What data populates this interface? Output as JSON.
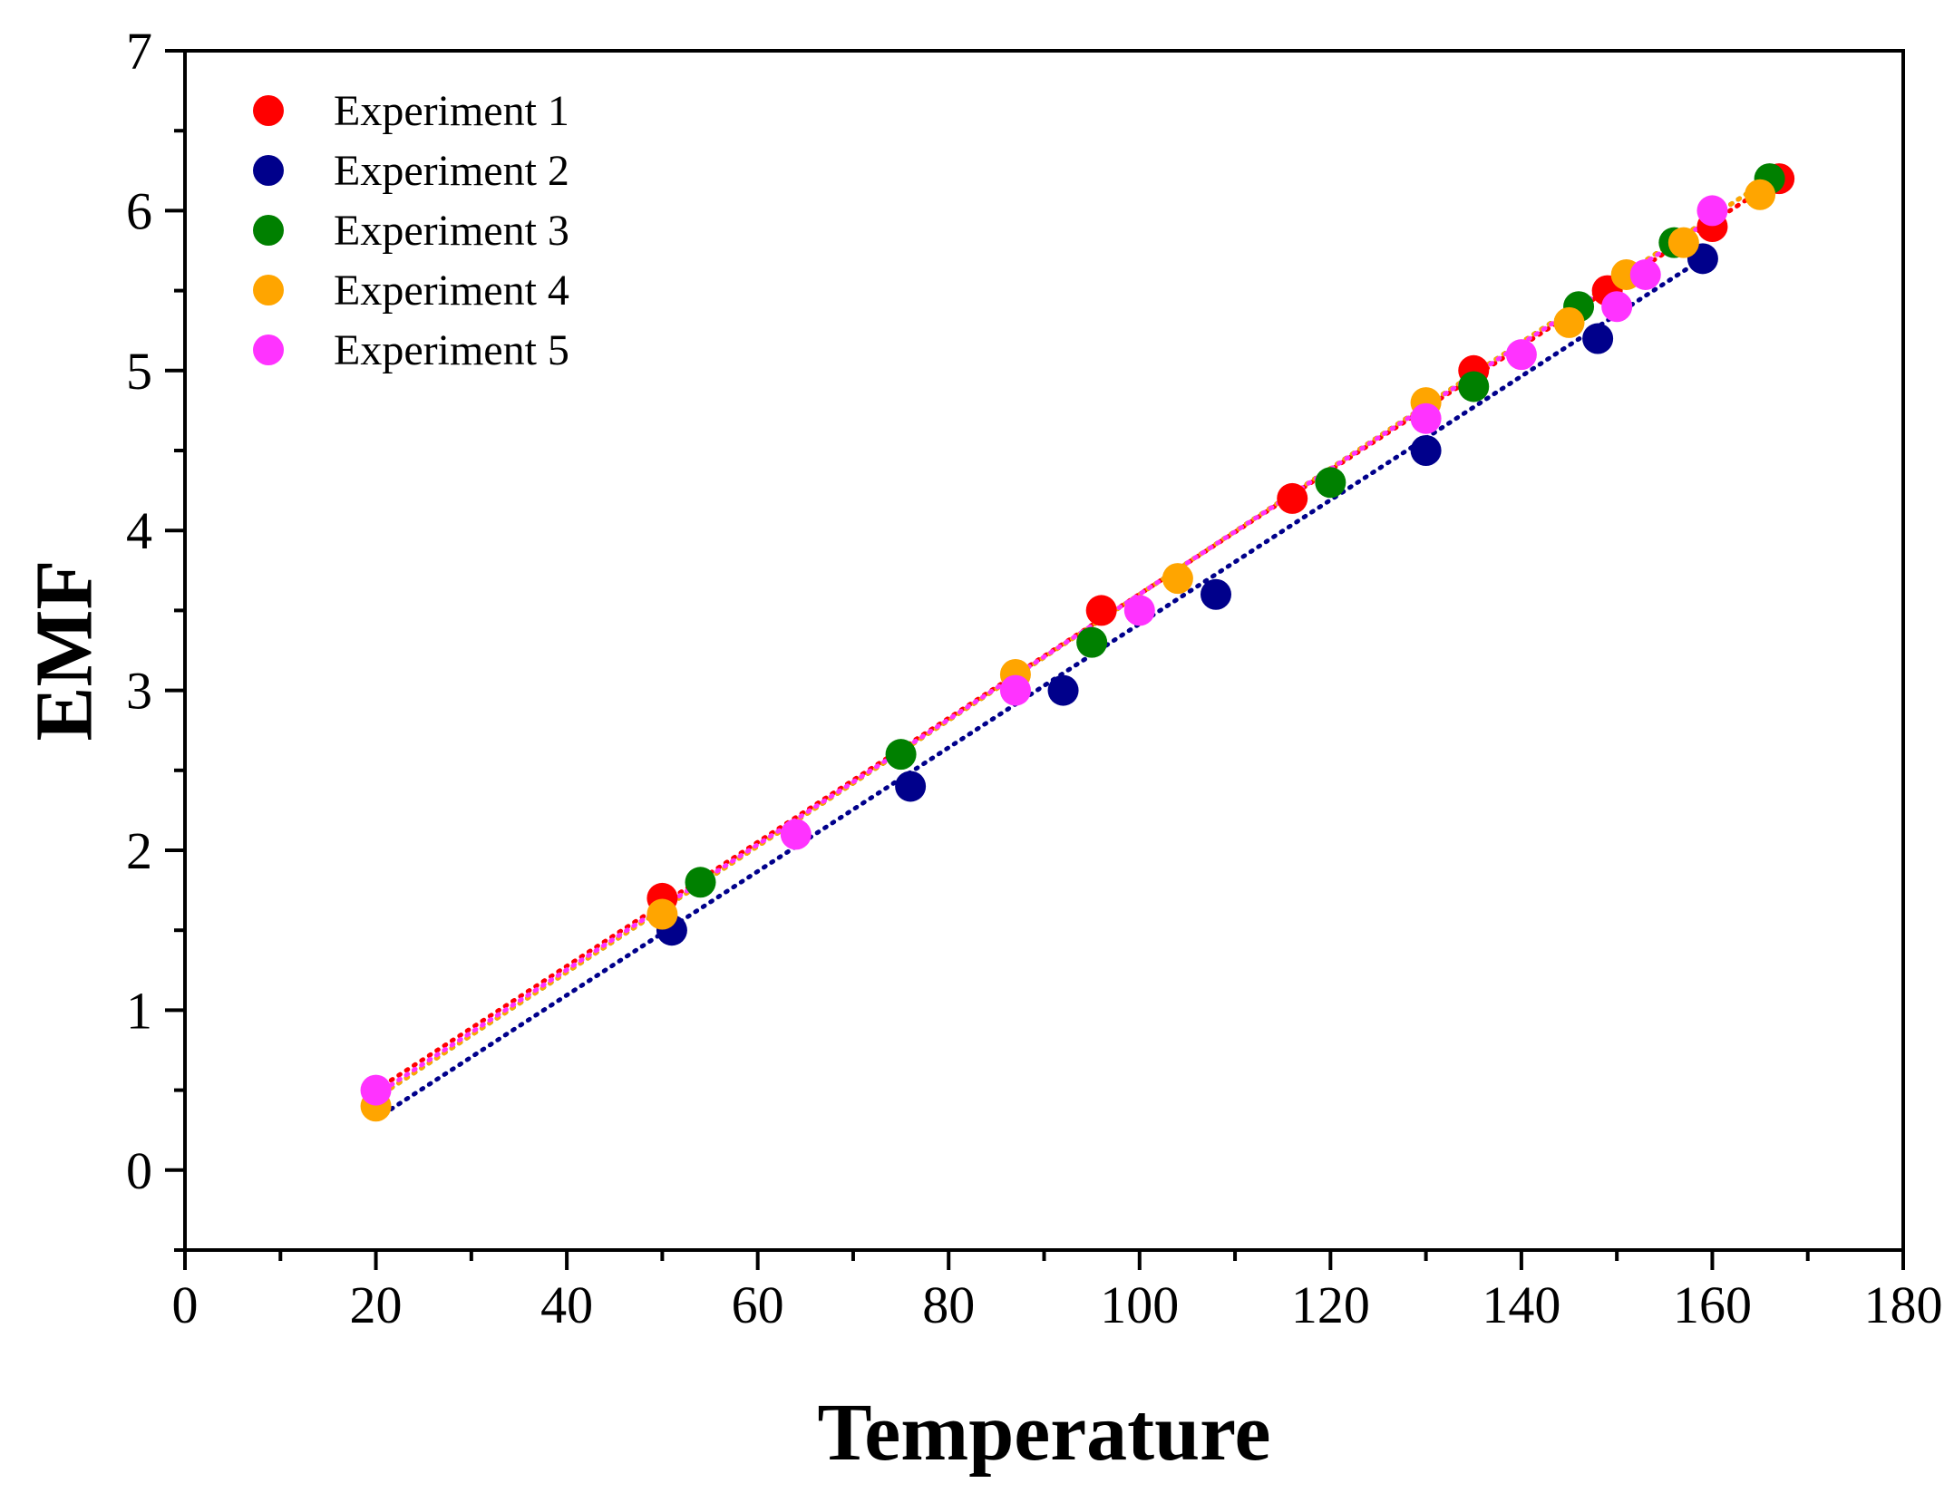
{
  "chart_data": {
    "type": "scatter",
    "title": "",
    "xlabel": "Temperature",
    "ylabel": "EMF",
    "xlim": [
      0,
      180
    ],
    "ylim": [
      -0.5,
      7
    ],
    "xticks": [
      0,
      20,
      40,
      60,
      80,
      100,
      120,
      140,
      160,
      180
    ],
    "yticks": [
      0,
      1,
      2,
      3,
      4,
      5,
      6,
      7
    ],
    "grid": false,
    "legend_position": "top-left",
    "series": [
      {
        "name": "Experiment 1",
        "color": "#ff0000",
        "x": [
          50,
          96,
          116,
          135,
          149,
          160,
          167
        ],
        "y": [
          1.7,
          3.5,
          4.2,
          5.0,
          5.5,
          5.9,
          6.2
        ],
        "trendline": {
          "x": [
            20,
            167
          ],
          "y": [
            0.5,
            6.2
          ],
          "style": "dotted"
        }
      },
      {
        "name": "Experiment 2",
        "color": "#00008b",
        "x": [
          51,
          76,
          92,
          108,
          130,
          148,
          159
        ],
        "y": [
          1.5,
          2.4,
          3.0,
          3.6,
          4.5,
          5.2,
          5.7
        ],
        "trendline": {
          "x": [
            20,
            159
          ],
          "y": [
            0.32,
            5.7
          ],
          "style": "dotted"
        }
      },
      {
        "name": "Experiment 3",
        "color": "#008000",
        "x": [
          54,
          75,
          95,
          120,
          135,
          146,
          156,
          166
        ],
        "y": [
          1.8,
          2.6,
          3.3,
          4.3,
          4.9,
          5.4,
          5.8,
          6.2
        ],
        "trendline": {
          "x": [
            20,
            166
          ],
          "y": [
            0.45,
            6.2
          ],
          "style": "dotted"
        }
      },
      {
        "name": "Experiment 4",
        "color": "#ffa500",
        "x": [
          20,
          50,
          87,
          104,
          130,
          145,
          151,
          157,
          165
        ],
        "y": [
          0.4,
          1.6,
          3.1,
          3.7,
          4.8,
          5.3,
          5.6,
          5.8,
          6.1
        ],
        "trendline": {
          "x": [
            20,
            166
          ],
          "y": [
            0.45,
            6.2
          ],
          "style": "dotted"
        }
      },
      {
        "name": "Experiment 5",
        "color": "#ff33ff",
        "x": [
          20,
          64,
          87,
          100,
          130,
          140,
          150,
          153,
          160
        ],
        "y": [
          0.5,
          2.1,
          3.0,
          3.5,
          4.7,
          5.1,
          5.4,
          5.6,
          6.0
        ],
        "trendline": {
          "x": [
            20,
            160
          ],
          "y": [
            0.47,
            5.95
          ],
          "style": "dotted"
        }
      }
    ]
  }
}
